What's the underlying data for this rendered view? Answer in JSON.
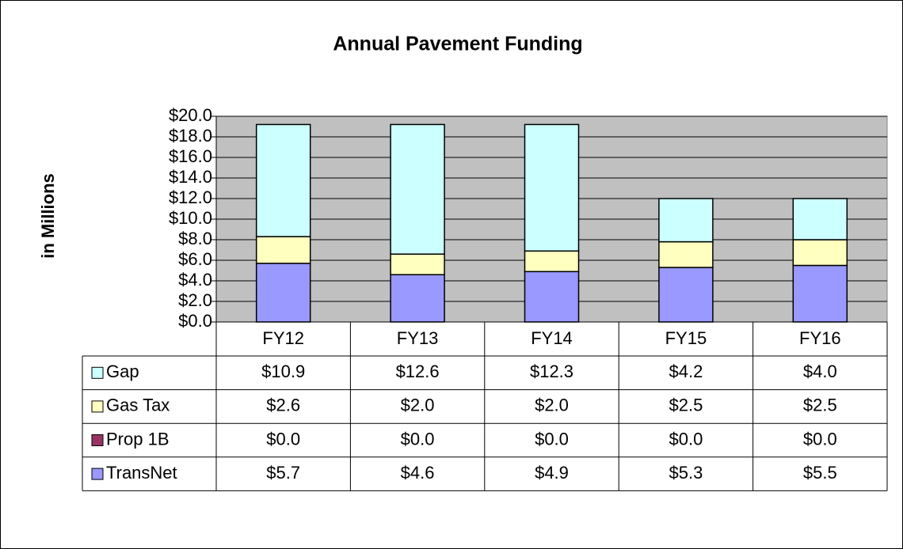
{
  "chart_data": {
    "type": "stacked_bar",
    "title": "Annual Pavement Funding",
    "y_label": "in Millions",
    "categories": [
      "FY12",
      "FY13",
      "FY14",
      "FY15",
      "FY16"
    ],
    "series": [
      {
        "name": "Gap",
        "color": "#ccffff",
        "values": [
          10.9,
          12.6,
          12.3,
          4.2,
          4.0
        ],
        "value_labels": [
          "$10.9",
          "$12.6",
          "$12.3",
          "$4.2",
          "$4.0"
        ]
      },
      {
        "name": "Gas Tax",
        "color": "#ffffc0",
        "values": [
          2.6,
          2.0,
          2.0,
          2.5,
          2.5
        ],
        "value_labels": [
          "$2.6",
          "$2.0",
          "$2.0",
          "$2.5",
          "$2.5"
        ]
      },
      {
        "name": "Prop 1B",
        "color": "#993366",
        "values": [
          0.0,
          0.0,
          0.0,
          0.0,
          0.0
        ],
        "value_labels": [
          "$0.0",
          "$0.0",
          "$0.0",
          "$0.0",
          "$0.0"
        ]
      },
      {
        "name": "TransNet",
        "color": "#9999ff",
        "values": [
          5.7,
          4.6,
          4.9,
          5.3,
          5.5
        ],
        "value_labels": [
          "$5.7",
          "$4.6",
          "$4.9",
          "$5.3",
          "$5.5"
        ]
      }
    ],
    "ylim": [
      0,
      20
    ],
    "yticks": [
      {
        "value": 0,
        "label": "$0.0"
      },
      {
        "value": 2,
        "label": "$2.0"
      },
      {
        "value": 4,
        "label": "$4.0"
      },
      {
        "value": 6,
        "label": "$6.0"
      },
      {
        "value": 8,
        "label": "$8.0"
      },
      {
        "value": 10,
        "label": "$10.0"
      },
      {
        "value": 12,
        "label": "$12.0"
      },
      {
        "value": 14,
        "label": "$14.0"
      },
      {
        "value": 16,
        "label": "$16.0"
      },
      {
        "value": 18,
        "label": "$18.0"
      },
      {
        "value": 20,
        "label": "$20.0"
      }
    ],
    "grid": true,
    "plot_background": "#c0c0c0",
    "data_table": true
  }
}
